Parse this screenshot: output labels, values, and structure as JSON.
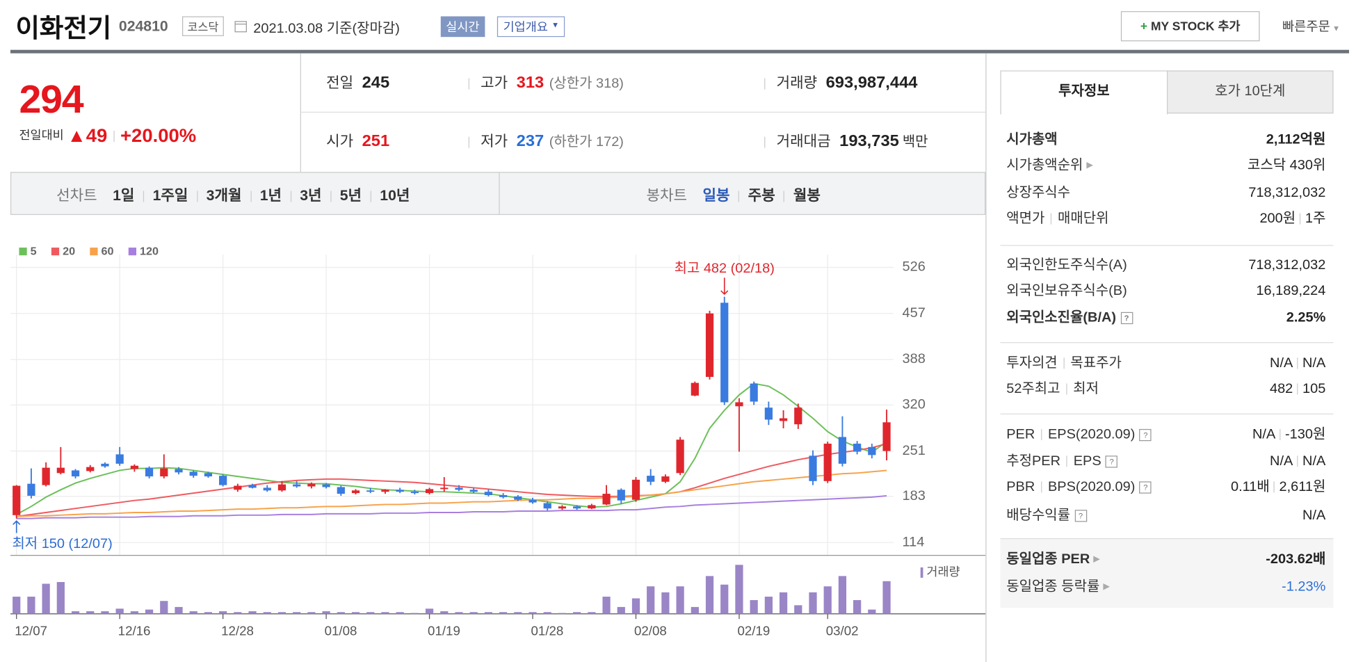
{
  "header": {
    "name": "이화전기",
    "code": "024810",
    "market": "코스닥",
    "date": "2021.03.08 기준(장마감)",
    "realtime": "실시간",
    "overview": "기업개요",
    "mystock": "MY STOCK 추가",
    "quick_order": "빠른주문"
  },
  "quote": {
    "price": "294",
    "change_label": "전일대비",
    "change": "49",
    "change_rate": "+20.00%",
    "color": "#e5161d",
    "cells": [
      {
        "label": "전일",
        "value": "245"
      },
      {
        "label": "고가",
        "value": "313",
        "note": "(상한가 318)",
        "color": "#e5161d"
      },
      {
        "label": "거래량",
        "value": "693,987,444"
      },
      {
        "label": "시가",
        "value": "251",
        "color": "#e5161d"
      },
      {
        "label": "저가",
        "value": "237",
        "note": "(하한가 172)",
        "color": "#2a6fd6"
      },
      {
        "label": "거래대금",
        "value": "193,735",
        "unit": "백만"
      }
    ]
  },
  "periods": {
    "line_label": "선차트",
    "line": [
      "1일",
      "1주일",
      "3개월",
      "1년",
      "3년",
      "5년",
      "10년"
    ],
    "candle_label": "봉차트",
    "candle": [
      "일봉",
      "주봉",
      "월봉"
    ]
  },
  "tabs": [
    "투자정보",
    "호가 10단계"
  ],
  "info": [
    [
      {
        "label": [
          "시가총액"
        ],
        "value": [
          "2,112억원"
        ],
        "bold": true
      },
      {
        "label": [
          "시가총액순위"
        ],
        "more": true,
        "value": [
          "코스닥 430위"
        ]
      },
      {
        "label": [
          "상장주식수"
        ],
        "value": [
          "718,312,032"
        ]
      },
      {
        "label": [
          "액면가",
          "매매단위"
        ],
        "value": [
          "200원",
          "1주"
        ]
      }
    ],
    [
      {
        "label": [
          "외국인한도주식수(A)"
        ],
        "value": [
          "718,312,032"
        ]
      },
      {
        "label": [
          "외국인보유주식수(B)"
        ],
        "value": [
          "16,189,224"
        ]
      },
      {
        "label": [
          "외국인소진율(B/A)"
        ],
        "help": true,
        "value": [
          "2.25%"
        ],
        "bold": true
      }
    ],
    [
      {
        "label": [
          "투자의견",
          "목표주가"
        ],
        "value": [
          "N/A",
          "N/A"
        ]
      },
      {
        "label": [
          "52주최고",
          "최저"
        ],
        "value": [
          "482",
          "105"
        ]
      }
    ],
    [
      {
        "label": [
          "PER",
          "EPS(2020.09)"
        ],
        "help": true,
        "value": [
          "N/A",
          "-130원"
        ]
      },
      {
        "label": [
          "추정PER",
          "EPS"
        ],
        "help": true,
        "value": [
          "N/A",
          "N/A"
        ]
      },
      {
        "label": [
          "PBR",
          "BPS(2020.09)"
        ],
        "help": true,
        "value": [
          "0.11배",
          "2,611원"
        ]
      },
      {
        "label": [
          "배당수익률"
        ],
        "help": true,
        "value": [
          "N/A"
        ]
      }
    ],
    [
      {
        "label": [
          "동일업종 PER"
        ],
        "more": true,
        "value": [
          "-203.62배"
        ],
        "bold": true
      },
      {
        "label": [
          "동일업종 등락률"
        ],
        "more": true,
        "value": [
          "-1.23%"
        ],
        "color": "#2a6fd6"
      }
    ]
  ],
  "chart_data": {
    "type": "candlestick",
    "grid": true,
    "categories": [
      "12/07",
      null,
      null,
      null,
      null,
      null,
      null,
      "12/16",
      null,
      null,
      null,
      null,
      null,
      null,
      "12/28",
      null,
      null,
      null,
      null,
      null,
      null,
      "01/08",
      null,
      null,
      null,
      null,
      null,
      null,
      "01/19",
      null,
      null,
      null,
      null,
      null,
      null,
      "01/28",
      null,
      null,
      null,
      null,
      null,
      null,
      "02/08",
      null,
      null,
      null,
      null,
      null,
      null,
      "02/19",
      null,
      null,
      null,
      null,
      null,
      "03/02",
      null,
      null,
      null,
      null
    ],
    "open": [
      155,
      202,
      200,
      218,
      222,
      221,
      232,
      246,
      224,
      226,
      213,
      224,
      220,
      218,
      214,
      193,
      200,
      196,
      192,
      201,
      198,
      201,
      197,
      188,
      192,
      190,
      193,
      190,
      188,
      194,
      196,
      193,
      190,
      185,
      183,
      178,
      173,
      165,
      168,
      165,
      171,
      193,
      178,
      214,
      205,
      218,
      334,
      362,
      473,
      318,
      352,
      316,
      296,
      291,
      244,
      206,
      272,
      262,
      257,
      251
    ],
    "high": [
      200,
      225,
      234,
      257,
      224,
      230,
      234,
      257,
      231,
      228,
      246,
      227,
      222,
      220,
      216,
      202,
      202,
      200,
      206,
      206,
      204,
      203,
      199,
      194,
      196,
      194,
      196,
      193,
      196,
      212,
      200,
      196,
      194,
      188,
      185,
      181,
      176,
      170,
      170,
      172,
      200,
      195,
      212,
      224,
      216,
      272,
      355,
      461,
      482,
      330,
      355,
      325,
      312,
      322,
      252,
      265,
      303,
      266,
      262,
      313
    ],
    "low": [
      150,
      180,
      198,
      216,
      210,
      219,
      226,
      229,
      220,
      210,
      210,
      216,
      211,
      211,
      198,
      190,
      195,
      190,
      190,
      196,
      195,
      195,
      184,
      186,
      188,
      187,
      188,
      186,
      186,
      190,
      191,
      188,
      183,
      180,
      176,
      172,
      162,
      163,
      163,
      164,
      170,
      172,
      175,
      200,
      203,
      215,
      333,
      358,
      320,
      250,
      320,
      290,
      285,
      284,
      200,
      203,
      228,
      246,
      240,
      237
    ],
    "close": [
      199,
      184,
      226,
      226,
      213,
      227,
      228,
      232,
      229,
      213,
      225,
      219,
      214,
      213,
      200,
      199,
      196,
      192,
      201,
      198,
      202,
      197,
      187,
      192,
      190,
      193,
      190,
      188,
      194,
      196,
      193,
      190,
      185,
      182,
      178,
      174,
      165,
      168,
      165,
      170,
      187,
      177,
      208,
      205,
      213,
      268,
      353,
      457,
      324,
      324,
      325,
      298,
      300,
      316,
      206,
      262,
      232,
      250,
      245,
      294
    ],
    "up_color": "#e0262d",
    "down_color": "#3a7be0",
    "series": [
      {
        "name": "5",
        "color": "#6cc05a",
        "values": [
          156,
          168,
          182,
          193,
          203,
          210,
          216,
          222,
          225,
          225,
          226,
          225,
          222,
          219,
          216,
          213,
          210,
          207,
          204,
          203,
          202,
          202,
          200,
          198,
          195,
          193,
          192,
          191,
          190,
          190,
          189,
          188,
          187,
          184,
          181,
          178,
          175,
          172,
          169,
          167,
          168,
          172,
          177,
          182,
          187,
          205,
          240,
          285,
          312,
          335,
          352,
          348,
          335,
          318,
          300,
          280,
          266,
          257,
          249,
          265
        ]
      },
      {
        "name": "20",
        "color": "#ee5a5f",
        "values": [
          153,
          156,
          159,
          162,
          165,
          168,
          171,
          174,
          177,
          179,
          182,
          185,
          188,
          191,
          194,
          197,
          200,
          203,
          205,
          207,
          208,
          209,
          209,
          208,
          207,
          206,
          205,
          204,
          202,
          200,
          198,
          196,
          194,
          192,
          190,
          188,
          186,
          185,
          184,
          183,
          183,
          183,
          184,
          185,
          187,
          190,
          196,
          203,
          210,
          216,
          222,
          228,
          233,
          238,
          242,
          246,
          249,
          252,
          256,
          262
        ]
      },
      {
        "name": "60",
        "color": "#f7a24a",
        "values": [
          153,
          154,
          154,
          155,
          156,
          157,
          157,
          158,
          159,
          159,
          160,
          161,
          161,
          162,
          163,
          164,
          164,
          165,
          166,
          166,
          167,
          168,
          168,
          169,
          170,
          171,
          171,
          172,
          173,
          173,
          174,
          175,
          175,
          176,
          177,
          178,
          178,
          179,
          180,
          180,
          181,
          182,
          183,
          185,
          187,
          190,
          193,
          196,
          199,
          202,
          205,
          207,
          209,
          211,
          213,
          215,
          217,
          218,
          220,
          222
        ]
      },
      {
        "name": "120",
        "color": "#a77fe0",
        "values": [
          150,
          150,
          151,
          151,
          151,
          152,
          152,
          152,
          152,
          153,
          153,
          153,
          154,
          154,
          154,
          155,
          155,
          155,
          156,
          156,
          156,
          157,
          157,
          157,
          157,
          158,
          158,
          158,
          159,
          159,
          159,
          160,
          160,
          160,
          161,
          161,
          161,
          162,
          162,
          162,
          162,
          163,
          163,
          165,
          167,
          168,
          170,
          171,
          172,
          173,
          174,
          175,
          176,
          177,
          178,
          179,
          180,
          181,
          182,
          184
        ]
      }
    ],
    "volume_name": "거래량",
    "volume_color": "#9a85c6",
    "volume": [
      365000000,
      365000000,
      639000000,
      676000000,
      55000000,
      55000000,
      55000000,
      110000000,
      55000000,
      91000000,
      274000000,
      146000000,
      55000000,
      37000000,
      55000000,
      37000000,
      55000000,
      37000000,
      37000000,
      37000000,
      37000000,
      55000000,
      37000000,
      37000000,
      37000000,
      37000000,
      37000000,
      18000000,
      110000000,
      55000000,
      37000000,
      37000000,
      37000000,
      37000000,
      37000000,
      37000000,
      37000000,
      18000000,
      37000000,
      37000000,
      365000000,
      146000000,
      329000000,
      584000000,
      457000000,
      584000000,
      146000000,
      803000000,
      621000000,
      1041000000,
      292000000,
      365000000,
      457000000,
      183000000,
      457000000,
      584000000,
      803000000,
      292000000,
      91000000,
      693987444
    ],
    "ylim": [
      95,
      545
    ],
    "yticks": [
      114,
      183,
      251,
      320,
      388,
      457,
      526
    ],
    "high_label": "최고 482 (02/18)",
    "low_label": "최저 150 (12/07)"
  }
}
